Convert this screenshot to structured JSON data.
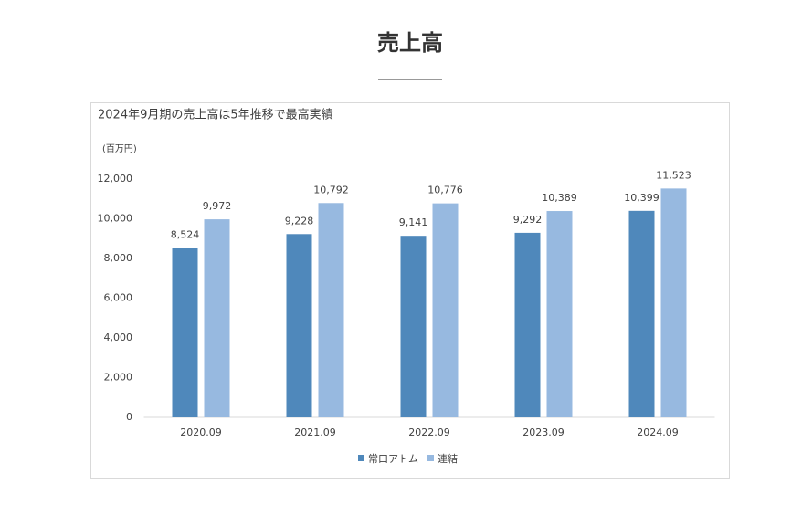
{
  "header": {
    "title": "売上高"
  },
  "chart_data": {
    "type": "bar",
    "title": "2024年9月期の売上高は5年推移で最高実績",
    "y_label": "(百万円)",
    "categories": [
      "2020.09",
      "2021.09",
      "2022.09",
      "2023.09",
      "2024.09"
    ],
    "series": [
      {
        "name": "常口アトム",
        "color": "#4f88bb",
        "values": [
          8524,
          9228,
          9141,
          9292,
          10399
        ],
        "value_labels": [
          "8,524",
          "9,228",
          "9,141",
          "9,292",
          "10,399"
        ]
      },
      {
        "name": "連結",
        "color": "#97b9e0",
        "values": [
          9972,
          10792,
          10776,
          10389,
          11523
        ],
        "value_labels": [
          "9,972",
          "10,792",
          "10,776",
          "10,389",
          "11,523"
        ]
      }
    ],
    "ylim": [
      0,
      12000
    ],
    "yticks": [
      0,
      {
        "value": 2000,
        "label": "2,000"
      },
      {
        "value": 4000,
        "label": "4,000"
      },
      {
        "value": 6000,
        "label": "6,000"
      },
      {
        "value": 8000,
        "label": "8,000"
      },
      {
        "value": 10000,
        "label": "10,000"
      },
      {
        "value": 12000,
        "label": "12,000"
      }
    ],
    "grid": false,
    "legend": "bottom"
  }
}
